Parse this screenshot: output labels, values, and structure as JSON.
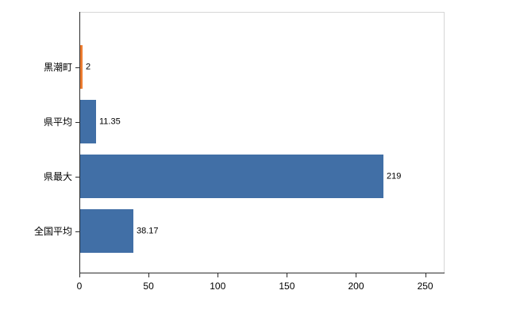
{
  "chart_data": {
    "type": "bar",
    "orientation": "horizontal",
    "title": "",
    "xlabel": "",
    "ylabel": "",
    "categories": [
      "黒潮町",
      "県平均",
      "県最大",
      "全国平均"
    ],
    "values": [
      2,
      11.35,
      219,
      38.17
    ],
    "value_labels": [
      "2",
      "11.35",
      "219",
      "38.17"
    ],
    "bar_colors": [
      "#ed7d31",
      "#416fa6",
      "#416fa6",
      "#416fa6"
    ],
    "x_ticks": [
      0,
      50,
      100,
      150,
      200,
      250
    ],
    "x_tick_labels": [
      "0",
      "50",
      "100",
      "150",
      "200",
      "250"
    ],
    "xlim": [
      0,
      264
    ],
    "grid": false,
    "legend": false
  },
  "colors": {
    "highlight_bar": "#ed7d31",
    "default_bar": "#416fa6",
    "plot_border": "#d6d6d6",
    "axis": "#2b2b2b",
    "background": "#ffffff",
    "text": "#000000"
  }
}
